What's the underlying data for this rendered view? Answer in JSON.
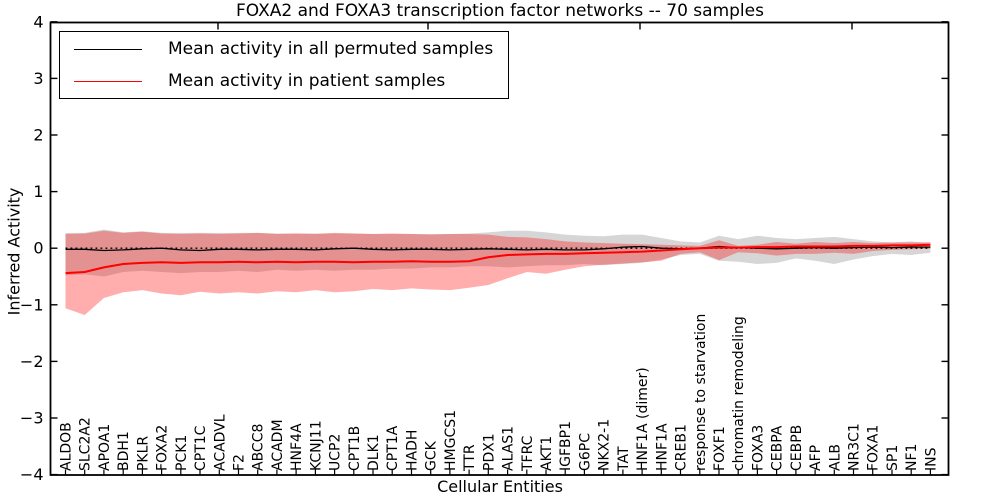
{
  "chart_data": {
    "type": "line",
    "title": "FOXA2 and FOXA3 transcription factor networks -- 70 samples",
    "xlabel": "Cellular Entities",
    "ylabel": "Inferred Activity",
    "ylim": [
      -4,
      4
    ],
    "yticks": [
      -4,
      -3,
      -2,
      -1,
      0,
      1,
      2,
      3,
      4
    ],
    "grid": false,
    "legend": {
      "position": "upper left",
      "entries": [
        {
          "label": "Mean activity in all permuted samples",
          "color": "#000000"
        },
        {
          "label": "Mean activity in patient samples",
          "color": "#ff0000"
        }
      ]
    },
    "categories": [
      "ALDOB",
      "SLC2A2",
      "APOA1",
      "BDH1",
      "PKLR",
      "FOXA2",
      "PCK1",
      "CPT1C",
      "ACADVL",
      "F2",
      "ABCC8",
      "ACADM",
      "HNF4A",
      "KCNJ11",
      "UCP2",
      "CPT1B",
      "DLK1",
      "CPT1A",
      "HADH",
      "GCK",
      "HMGCS1",
      "TTR",
      "PDX1",
      "ALAS1",
      "TFRC",
      "AKT1",
      "IGFBP1",
      "G6PC",
      "NKX2-1",
      "TAT",
      "HNF1A (dimer)",
      "HNF1A",
      "CREB1",
      "response to starvation",
      "FOXF1",
      "chromatin remodeling",
      "FOXA3",
      "CEBPA",
      "CEBPB",
      "AFP",
      "ALB",
      "NR3C1",
      "FOXA1",
      "SP1",
      "NF1",
      "INS"
    ],
    "series": [
      {
        "name": "Mean activity in all permuted samples",
        "color": "#000000",
        "width": 1.3,
        "values": [
          -0.02,
          -0.02,
          -0.04,
          -0.03,
          -0.01,
          0.0,
          -0.03,
          -0.04,
          -0.02,
          -0.02,
          -0.03,
          -0.02,
          -0.02,
          -0.03,
          -0.01,
          0.0,
          -0.02,
          -0.03,
          -0.02,
          -0.02,
          -0.03,
          -0.02,
          -0.01,
          -0.02,
          -0.03,
          -0.02,
          -0.03,
          -0.03,
          -0.01,
          0.02,
          0.03,
          0.0,
          -0.01,
          0.0,
          0.03,
          0.01,
          0.0,
          -0.01,
          0.0,
          0.01,
          0.0,
          0.01,
          0.02,
          0.01,
          0.02,
          0.02
        ]
      },
      {
        "name": "Mean activity in patient samples",
        "color": "#ff0000",
        "width": 2,
        "values": [
          -0.44,
          -0.42,
          -0.34,
          -0.28,
          -0.26,
          -0.25,
          -0.26,
          -0.25,
          -0.25,
          -0.24,
          -0.25,
          -0.24,
          -0.25,
          -0.24,
          -0.24,
          -0.25,
          -0.24,
          -0.24,
          -0.23,
          -0.24,
          -0.24,
          -0.23,
          -0.16,
          -0.12,
          -0.11,
          -0.1,
          -0.1,
          -0.09,
          -0.08,
          -0.07,
          -0.06,
          -0.04,
          -0.02,
          0.0,
          0.01,
          0.01,
          0.02,
          0.02,
          0.03,
          0.03,
          0.03,
          0.04,
          0.04,
          0.05,
          0.05,
          0.06
        ]
      }
    ],
    "bands": [
      {
        "name": "permuted samples spread",
        "color": "#7f7f7f",
        "opacity": 0.32,
        "upper": [
          0.27,
          0.27,
          0.33,
          0.28,
          0.3,
          0.27,
          0.27,
          0.27,
          0.27,
          0.27,
          0.27,
          0.26,
          0.26,
          0.26,
          0.26,
          0.26,
          0.25,
          0.25,
          0.25,
          0.25,
          0.25,
          0.26,
          0.28,
          0.31,
          0.31,
          0.28,
          0.24,
          0.22,
          0.21,
          0.24,
          0.24,
          0.18,
          0.12,
          0.1,
          0.22,
          0.16,
          0.22,
          0.18,
          0.16,
          0.18,
          0.2,
          0.16,
          0.12,
          0.1,
          0.12,
          0.08
        ],
        "lower": [
          -0.48,
          -0.46,
          -0.5,
          -0.42,
          -0.4,
          -0.42,
          -0.44,
          -0.42,
          -0.42,
          -0.4,
          -0.42,
          -0.38,
          -0.4,
          -0.38,
          -0.4,
          -0.38,
          -0.38,
          -0.36,
          -0.36,
          -0.34,
          -0.34,
          -0.32,
          -0.32,
          -0.34,
          -0.32,
          -0.3,
          -0.3,
          -0.28,
          -0.3,
          -0.28,
          -0.26,
          -0.2,
          -0.12,
          -0.1,
          -0.22,
          -0.24,
          -0.28,
          -0.26,
          -0.18,
          -0.22,
          -0.28,
          -0.2,
          -0.14,
          -0.1,
          -0.12,
          -0.08
        ]
      },
      {
        "name": "patient samples spread",
        "color": "#ff0000",
        "opacity": 0.32,
        "upper": [
          0.25,
          0.26,
          0.31,
          0.27,
          0.29,
          0.26,
          0.25,
          0.26,
          0.25,
          0.26,
          0.27,
          0.25,
          0.26,
          0.25,
          0.27,
          0.26,
          0.25,
          0.26,
          0.25,
          0.24,
          0.25,
          0.25,
          0.24,
          0.2,
          0.19,
          0.16,
          0.12,
          0.1,
          0.09,
          0.08,
          0.07,
          0.06,
          0.05,
          0.04,
          0.14,
          0.04,
          0.06,
          0.11,
          0.08,
          0.11,
          0.09,
          0.11,
          0.09,
          0.1,
          0.1,
          0.11
        ],
        "lower": [
          -1.06,
          -1.18,
          -0.88,
          -0.78,
          -0.74,
          -0.8,
          -0.83,
          -0.77,
          -0.8,
          -0.78,
          -0.8,
          -0.76,
          -0.78,
          -0.74,
          -0.78,
          -0.76,
          -0.72,
          -0.74,
          -0.71,
          -0.73,
          -0.74,
          -0.7,
          -0.65,
          -0.53,
          -0.42,
          -0.45,
          -0.38,
          -0.32,
          -0.29,
          -0.27,
          -0.25,
          -0.22,
          -0.1,
          -0.07,
          -0.21,
          -0.07,
          -0.09,
          -0.13,
          -0.1,
          -0.1,
          -0.08,
          -0.1,
          -0.05,
          -0.03,
          -0.02,
          -0.01
        ]
      }
    ],
    "zero_line": {
      "y": 0,
      "style": "dotted",
      "color": "#000000"
    }
  }
}
